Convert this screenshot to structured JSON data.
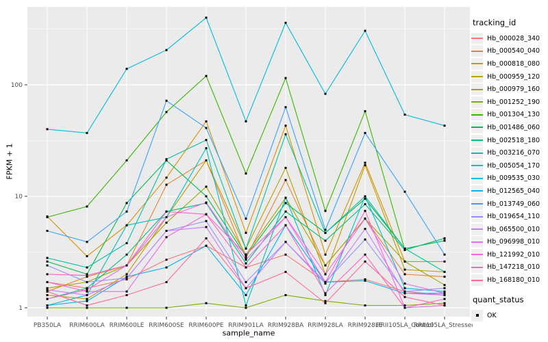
{
  "figure": {
    "x_title": "sample_name",
    "y_title": "FPKM + 1"
  },
  "legend": {
    "tracking_title": "tracking_id",
    "quant_title": "quant_status",
    "quant_ok_label": "OK",
    "ok_marker": "black-square"
  },
  "chart_data": {
    "type": "line",
    "title": "",
    "xlabel": "sample_name",
    "ylabel": "FPKM + 1",
    "y_scale": "log10",
    "y_ticks": [
      1,
      10,
      100
    ],
    "y_minor_gridlines": [
      3.162,
      31.62,
      316.2
    ],
    "ylim": [
      0.9,
      500
    ],
    "grid": true,
    "legend_position": "right",
    "panel_background": "#EBEBEB",
    "gridline_color": "#FFFFFF",
    "tick_label_color": "#4D4D4D",
    "point_marker": {
      "shape": "square",
      "color": "#000000",
      "label": "OK"
    },
    "categories": [
      "PB350LA",
      "RRIM600LA",
      "RRIM600LE",
      "RRIM600SE",
      "RRIM600PE",
      "RRIM901LA",
      "RRIM928BA",
      "RRIM928LA",
      "RRIM928LE",
      "RRII105LA_Control",
      "RRII105LA_Stressed"
    ],
    "series": [
      {
        "name": "Hb_000028_340",
        "color": "#F8766D",
        "values": [
          1.7,
          1.5,
          1.8,
          2.7,
          3.6,
          2.3,
          3.0,
          1.7,
          1.8,
          1.4,
          1.3
        ]
      },
      {
        "name": "Hb_000540_040",
        "color": "#EA8331",
        "values": [
          1.4,
          1.9,
          2.4,
          12.7,
          21,
          2.8,
          14,
          2.4,
          6.3,
          2.0,
          1.9
        ]
      },
      {
        "name": "Hb_000818_080",
        "color": "#D89000",
        "values": [
          6.6,
          2.9,
          5.5,
          14.7,
          47,
          4.7,
          43,
          3.0,
          20,
          2.6,
          2.6
        ]
      },
      {
        "name": "Hb_000959_120",
        "color": "#C09B00",
        "values": [
          1.3,
          1.2,
          2.0,
          6.5,
          21,
          3.4,
          18,
          2.0,
          19,
          2.2,
          2.1
        ]
      },
      {
        "name": "Hb_000979_160",
        "color": "#A3A500",
        "values": [
          1.5,
          1.7,
          2.4,
          5.8,
          12.2,
          3.0,
          9.7,
          2.4,
          6.3,
          2.6,
          1.6
        ]
      },
      {
        "name": "Hb_001252_190",
        "color": "#7CAE00",
        "values": [
          1.0,
          1.0,
          1.0,
          1.0,
          1.1,
          1.0,
          1.3,
          1.15,
          1.05,
          1.05,
          1.1
        ]
      },
      {
        "name": "Hb_001304_130",
        "color": "#39B600",
        "values": [
          6.5,
          8.1,
          21,
          57,
          120,
          16,
          115,
          7.4,
          58,
          3.3,
          4.2
        ]
      },
      {
        "name": "Hb_001486_060",
        "color": "#00BB4E",
        "values": [
          2.6,
          2.0,
          8.7,
          21,
          10,
          2.9,
          8.7,
          4.7,
          9.5,
          3.4,
          4.0
        ]
      },
      {
        "name": "Hb_002518_180",
        "color": "#00BF7D",
        "values": [
          1.2,
          1.5,
          3.0,
          7.3,
          8.7,
          2.5,
          7.3,
          4.0,
          8.5,
          3.3,
          4.2
        ]
      },
      {
        "name": "Hb_003216_070",
        "color": "#00C1A3",
        "values": [
          2.8,
          2.3,
          3.8,
          21.5,
          32,
          3.4,
          36,
          4.7,
          10,
          3.4,
          2.1
        ]
      },
      {
        "name": "Hb_005054_170",
        "color": "#00BFC4",
        "values": [
          1.05,
          1.3,
          5.5,
          6.5,
          27,
          1.05,
          9.7,
          1.3,
          10,
          1.5,
          1.4
        ]
      },
      {
        "name": "Hb_009535_030",
        "color": "#00BAE0",
        "values": [
          40,
          37,
          139,
          205,
          400,
          47,
          360,
          83,
          305,
          54,
          43
        ]
      },
      {
        "name": "Hb_012565_040",
        "color": "#00B0F6",
        "values": [
          1.05,
          1.15,
          1.9,
          2.3,
          3.6,
          1.3,
          5.5,
          1.7,
          1.75,
          1.35,
          1.35
        ]
      },
      {
        "name": "Hb_013749_060",
        "color": "#35A2FF",
        "values": [
          4.9,
          3.9,
          7.3,
          72,
          41,
          6.3,
          63,
          5.0,
          37,
          11,
          3.0
        ]
      },
      {
        "name": "Hb_019654_110",
        "color": "#9590FF",
        "values": [
          2.4,
          1.7,
          1.85,
          4.9,
          6.0,
          1.7,
          3.9,
          1.7,
          4.1,
          1.4,
          1.5
        ]
      },
      {
        "name": "Hb_065500_010",
        "color": "#C77CFF",
        "values": [
          1.45,
          1.3,
          1.85,
          4.9,
          5.3,
          1.5,
          3.9,
          1.65,
          5.1,
          1.35,
          1.3
        ]
      },
      {
        "name": "Hb_096998_010",
        "color": "#E76BF3",
        "values": [
          1.2,
          1.45,
          2.4,
          6.5,
          8.8,
          2.7,
          6.5,
          2.0,
          6.3,
          1.65,
          1.35
        ]
      },
      {
        "name": "Hb_121992_010",
        "color": "#FA62DB",
        "values": [
          1.7,
          1.4,
          1.4,
          4.3,
          6.9,
          3.0,
          6.5,
          1.7,
          7.4,
          1.0,
          1.05
        ]
      },
      {
        "name": "Hb_147218_010",
        "color": "#FF61C3",
        "values": [
          2.0,
          1.95,
          2.4,
          7.3,
          6.9,
          2.3,
          5.5,
          1.35,
          3.0,
          1.0,
          1.2
        ]
      },
      {
        "name": "Hb_168180_010",
        "color": "#FF6A98",
        "values": [
          1.4,
          1.05,
          1.3,
          1.7,
          4.2,
          1.5,
          2.1,
          1.1,
          2.6,
          1.25,
          1.05
        ]
      }
    ]
  }
}
